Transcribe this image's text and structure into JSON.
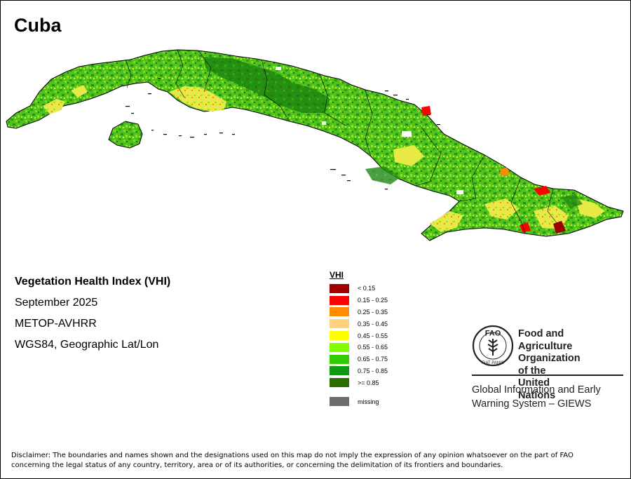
{
  "map": {
    "country": "Cuba",
    "title": "Vegetation Health Index (VHI)",
    "period": "September 2025",
    "sensor": "METOP-AVHRR",
    "projection": "WGS84, Geographic Lat/Lon"
  },
  "legend": {
    "title": "VHI",
    "classes": [
      {
        "label": "< 0.15",
        "color": "#a00000"
      },
      {
        "label": "0.15 - 0.25",
        "color": "#ff0000"
      },
      {
        "label": "0.25 - 0.35",
        "color": "#ff8c00"
      },
      {
        "label": "0.35 - 0.45",
        "color": "#ffd27f"
      },
      {
        "label": "0.45 - 0.55",
        "color": "#ffff00"
      },
      {
        "label": "0.55 - 0.65",
        "color": "#80ff00"
      },
      {
        "label": "0.65 - 0.75",
        "color": "#33cc00"
      },
      {
        "label": "0.75 - 0.85",
        "color": "#119911"
      },
      {
        "label": ">= 0.85",
        "color": "#2d6d00"
      }
    ],
    "missing": {
      "label": "missing",
      "color": "#6e6e6e"
    }
  },
  "organization": {
    "logo_text": "FAO",
    "logo_ring_text": "FIAT PANIS",
    "name_line1": "Food and Agriculture",
    "name_line2": "Organization of the",
    "name_line3": "United Nations",
    "system_line1": "Global Information and Early",
    "system_line2": "Warning System – GIEWS"
  },
  "disclaimer": {
    "line1": "Disclaimer: The boundaries and names shown and the designations used on this map do not imply the expression of any opinion whatsoever on the part of FAO",
    "line2": "concerning the legal status of any country, territory, area or of its authorities, or concerning the delimitation of its frontiers and boundaries."
  }
}
